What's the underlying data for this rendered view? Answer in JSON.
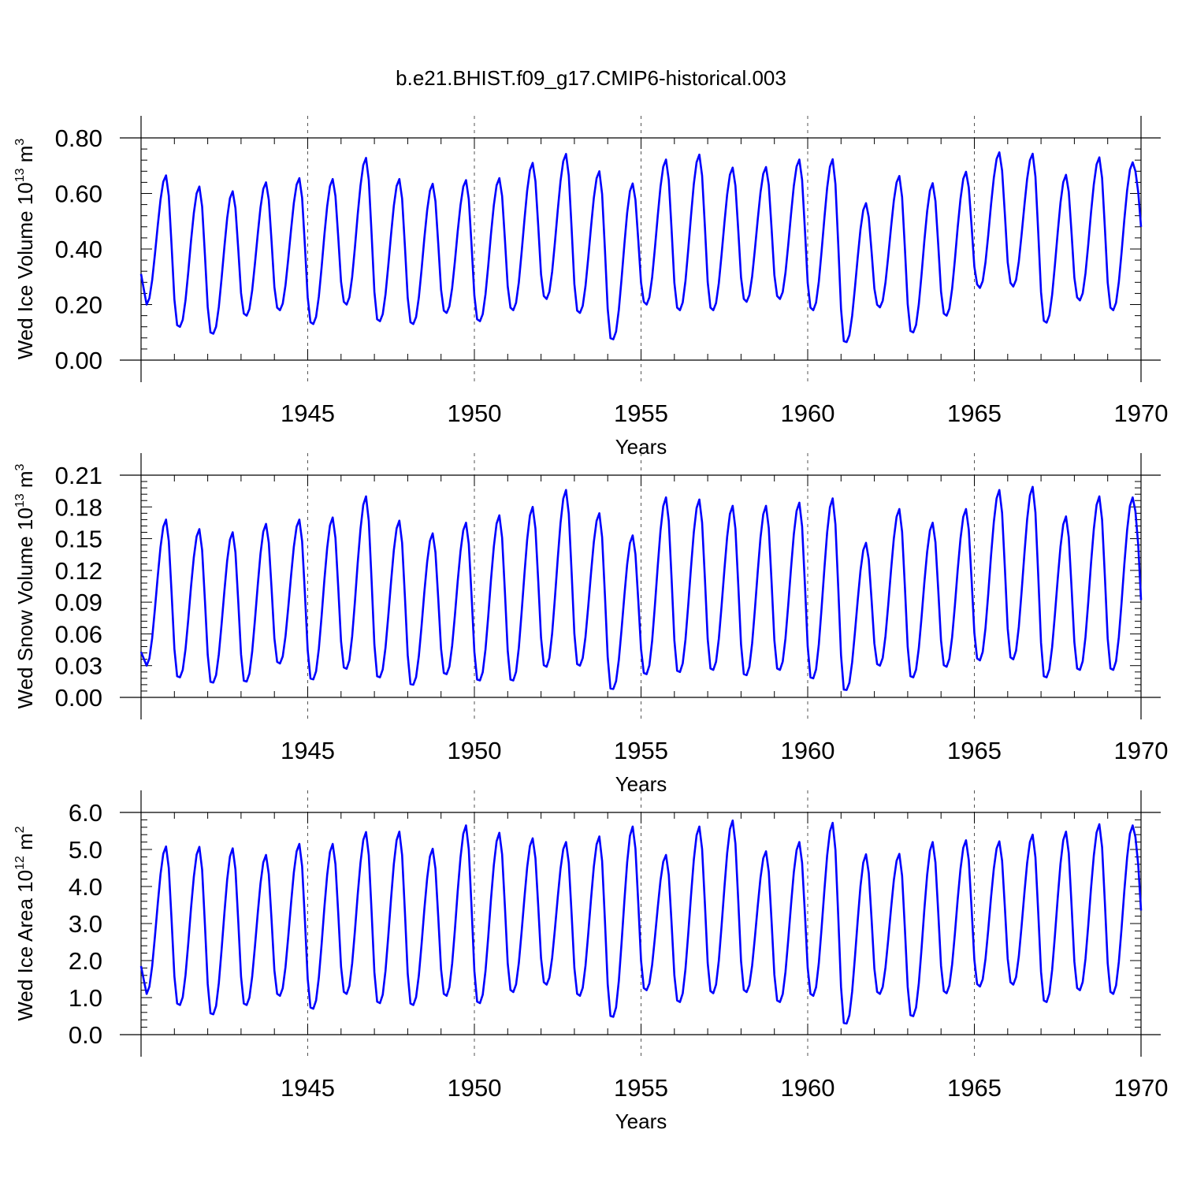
{
  "figure": {
    "title": "b.e21.BHIST.f09_g17.CMIP6-historical.003",
    "line_color": "#0000ff",
    "axis_color": "#000000",
    "grid_color": "#555555"
  },
  "chart_data": [
    {
      "type": "line",
      "title": "",
      "ylabel_text": "Wed Ice Volume 10",
      "ylabel_exp": "13",
      "ylabel_unit": " m",
      "ylabel_unit_exp": "3",
      "xlabel": "Years",
      "xlim": [
        1940.0,
        1970.0
      ],
      "ylim": [
        0.0,
        0.8
      ],
      "yticks": [
        0.0,
        0.2,
        0.4,
        0.6,
        0.8
      ],
      "ytick_labels": [
        "0.00",
        "0.20",
        "0.40",
        "0.60",
        "0.80"
      ],
      "xticks": [
        1945,
        1950,
        1955,
        1960,
        1965,
        1970
      ],
      "xtick_labels": [
        "1945",
        "1950",
        "1955",
        "1960",
        "1965",
        "1970"
      ],
      "grid_x": [
        1945,
        1950,
        1955,
        1960,
        1965
      ],
      "series": [
        {
          "name": "Wed Ice Volume",
          "x_start": 1940.0,
          "x_step": 0.08333,
          "max": [
            0.665,
            0.625,
            0.608,
            0.64,
            0.655,
            0.652,
            0.728,
            0.652,
            0.635,
            0.648,
            0.655,
            0.71,
            0.742,
            0.68,
            0.636,
            0.722,
            0.74,
            0.693,
            0.695,
            0.722,
            0.723,
            0.565,
            0.663,
            0.637,
            0.678,
            0.748,
            0.743,
            0.667,
            0.73,
            0.712
          ],
          "min": [
            0.2,
            0.12,
            0.095,
            0.16,
            0.18,
            0.13,
            0.2,
            0.14,
            0.13,
            0.17,
            0.14,
            0.18,
            0.22,
            0.17,
            0.075,
            0.2,
            0.18,
            0.18,
            0.21,
            0.22,
            0.18,
            0.065,
            0.19,
            0.1,
            0.16,
            0.26,
            0.265,
            0.135,
            0.215,
            0.18
          ],
          "start": 0.31,
          "end": 0.48
        }
      ]
    },
    {
      "type": "line",
      "title": "",
      "ylabel_text": "Wed Snow Volume 10",
      "ylabel_exp": "13",
      "ylabel_unit": " m",
      "ylabel_unit_exp": "3",
      "xlabel": "Years",
      "xlim": [
        1940.0,
        1970.0
      ],
      "ylim": [
        0.0,
        0.21
      ],
      "yticks": [
        0.0,
        0.03,
        0.06,
        0.09,
        0.12,
        0.15,
        0.18,
        0.21
      ],
      "ytick_labels": [
        "0.00",
        "0.03",
        "0.06",
        "0.09",
        "0.12",
        "0.15",
        "0.18",
        "0.21"
      ],
      "xticks": [
        1945,
        1950,
        1955,
        1960,
        1965,
        1970
      ],
      "xtick_labels": [
        "1945",
        "1950",
        "1955",
        "1960",
        "1965",
        "1970"
      ],
      "grid_x": [
        1945,
        1950,
        1955,
        1960,
        1965
      ],
      "series": [
        {
          "name": "Wed Snow Volume",
          "x_start": 1940.0,
          "x_step": 0.08333,
          "max": [
            0.168,
            0.159,
            0.156,
            0.164,
            0.168,
            0.17,
            0.19,
            0.167,
            0.155,
            0.165,
            0.172,
            0.18,
            0.196,
            0.174,
            0.153,
            0.189,
            0.187,
            0.181,
            0.181,
            0.184,
            0.188,
            0.146,
            0.178,
            0.165,
            0.178,
            0.196,
            0.199,
            0.171,
            0.19,
            0.189
          ],
          "min": [
            0.03,
            0.019,
            0.014,
            0.015,
            0.032,
            0.017,
            0.027,
            0.019,
            0.012,
            0.022,
            0.016,
            0.016,
            0.029,
            0.03,
            0.008,
            0.022,
            0.024,
            0.026,
            0.021,
            0.026,
            0.018,
            0.007,
            0.03,
            0.019,
            0.029,
            0.035,
            0.036,
            0.019,
            0.026,
            0.026
          ],
          "start": 0.043,
          "end": 0.092
        }
      ]
    },
    {
      "type": "line",
      "title": "",
      "ylabel_text": "Wed Ice Area 10",
      "ylabel_exp": "12",
      "ylabel_unit": " m",
      "ylabel_unit_exp": "2",
      "xlabel": "Years",
      "xlim": [
        1940.0,
        1970.0
      ],
      "ylim": [
        0.0,
        6.0
      ],
      "yticks": [
        0.0,
        1.0,
        2.0,
        3.0,
        4.0,
        5.0,
        6.0
      ],
      "ytick_labels": [
        "0.0",
        "1.0",
        "2.0",
        "3.0",
        "4.0",
        "5.0",
        "6.0"
      ],
      "xticks": [
        1945,
        1950,
        1955,
        1960,
        1965,
        1970
      ],
      "xtick_labels": [
        "1945",
        "1950",
        "1955",
        "1960",
        "1965",
        "1970"
      ],
      "grid_x": [
        1945,
        1950,
        1955,
        1960,
        1965
      ],
      "series": [
        {
          "name": "Wed Ice Area",
          "x_start": 1940.0,
          "x_step": 0.08333,
          "max": [
            5.08,
            5.07,
            5.03,
            4.85,
            5.15,
            5.15,
            5.47,
            5.48,
            5.02,
            5.65,
            5.45,
            5.3,
            5.2,
            5.35,
            5.62,
            4.85,
            5.62,
            5.78,
            4.95,
            5.2,
            5.72,
            4.87,
            4.88,
            5.2,
            5.25,
            5.22,
            5.4,
            5.48,
            5.68,
            5.65
          ],
          "min": [
            1.1,
            0.8,
            0.55,
            0.8,
            1.05,
            0.7,
            1.1,
            0.85,
            0.8,
            1.05,
            0.85,
            1.15,
            1.35,
            1.05,
            0.48,
            1.2,
            0.88,
            1.12,
            1.15,
            0.88,
            1.05,
            0.3,
            1.1,
            0.5,
            1.12,
            1.3,
            1.35,
            0.88,
            1.2,
            1.1
          ],
          "start": 1.85,
          "end": 3.35
        }
      ]
    }
  ]
}
